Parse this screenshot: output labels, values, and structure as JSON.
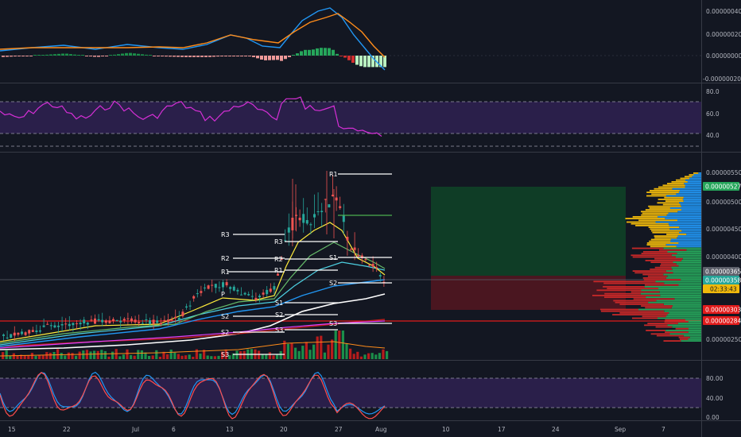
{
  "colors": {
    "background": "#131722",
    "grid_divider": "#363a45",
    "axis_text": "#b2b5be",
    "rsi_band": "#2a1f4a",
    "rsi_line": "#d62fd6",
    "up": "#26a69a",
    "down": "#ef5350",
    "macd_fast": "#2196f3",
    "macd_slow": "#ff8c1a",
    "long_target": "#0f3d26",
    "long_stop": "#4a1620",
    "pivot_line": "#ffffff",
    "stoch_k": "#2196f3",
    "stoch_d": "#ff4d4d"
  },
  "macd_panel": {
    "axis_ticks": [
      "0.00000040",
      "0.00000020",
      "0.00000000",
      "-0.00000020"
    ]
  },
  "rsi_panel": {
    "axis_ticks": [
      "80.0",
      "60.0",
      "40.0"
    ]
  },
  "price_panel": {
    "axis_ticks": [
      "0.00000550",
      "0.00000500",
      "0.00000450",
      "0.00000400",
      "0.00000250"
    ],
    "price_badges": [
      {
        "label": "0.00000527",
        "color": "#26a65b"
      },
      {
        "label": "0.00000365",
        "color": "#5d606b"
      },
      {
        "label": "0.00000358",
        "color": "#26a69a"
      },
      {
        "label": "02:33:43",
        "color": "#f0b90b"
      },
      {
        "label": "0.00000303",
        "color": "#e01b1b"
      },
      {
        "label": "0.00000284",
        "color": "#e01b1b"
      }
    ],
    "pivot_labels": {
      "r1_top": "R1",
      "r3_left": "R3",
      "r3_mid": "R3",
      "r2_left": "R2",
      "r2_mid": "R2",
      "r1_left": "R1",
      "r1_mid": "R1",
      "p_left": "P",
      "s1_right": "S1",
      "s2_right": "S2",
      "s1_mid": "S1",
      "s2_left": "S2",
      "s2_mid": "S2",
      "s3_right": "S3",
      "s2_bottom": "S2",
      "s3_mid": "S3",
      "s3_bottom": "S3"
    }
  },
  "stoch_panel": {
    "axis_ticks": [
      "80.00",
      "40.00",
      "0.00"
    ]
  },
  "time_axis": {
    "labels": [
      "15",
      "22",
      "Jul",
      "6",
      "13",
      "20",
      "27",
      "Aug",
      "10",
      "17",
      "24",
      "Sep",
      "7"
    ]
  }
}
